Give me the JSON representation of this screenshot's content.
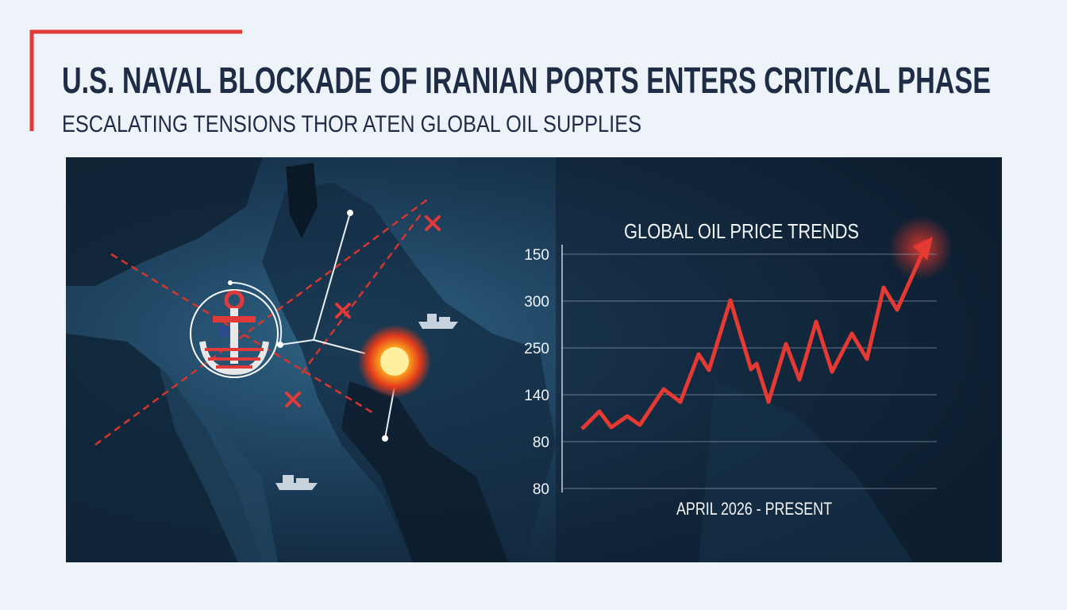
{
  "header": {
    "title": "U.S. NAVAL BLOCKADE OF IRANIAN PORTS ENTERS CRITICAL PHASE",
    "subtitle": "ESCALATING TENSIONS THOR ATEN GLOBAL OIL SUPPLIES"
  },
  "chart": {
    "title": "GLOBAL OIL PRICE TRENDS",
    "y_labels": [
      "150",
      "300",
      "250",
      "140",
      "80",
      "80"
    ],
    "x_label": "APRIL 2026 - PRESENT"
  }
}
